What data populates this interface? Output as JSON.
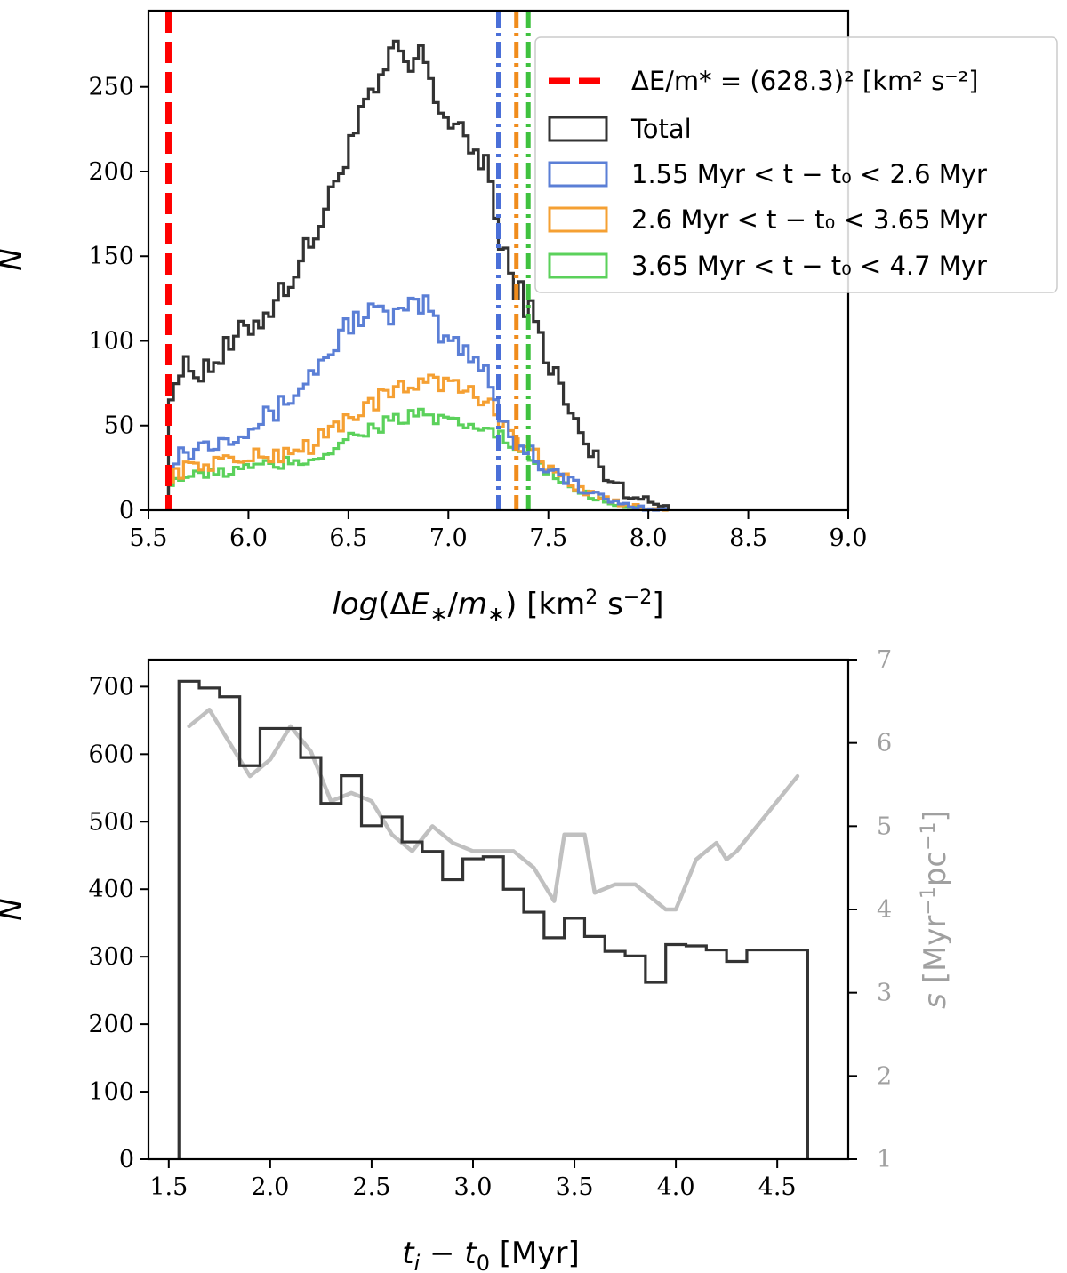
{
  "chart_data": [
    {
      "type": "histogram",
      "panel": "top",
      "xlabel": "log(ΔE*/m*) [km² s⁻²]",
      "ylabel": "N",
      "xlim": [
        5.5,
        9.0
      ],
      "ylim": [
        0,
        295
      ],
      "xticks": [
        "5.5",
        "6.0",
        "6.5",
        "7.0",
        "7.5",
        "8.0",
        "8.5",
        "9.0"
      ],
      "yticks": [
        "0",
        "50",
        "100",
        "150",
        "200",
        "250"
      ],
      "bins": {
        "start": 5.6,
        "end": 8.1,
        "count": 100
      },
      "threshold_line": {
        "x": 5.6,
        "label": "ΔE/m* = (628.3)² [km² s⁻²]",
        "color": "#ff0000"
      },
      "series": [
        {
          "name": "Total",
          "color": "#333333",
          "anchors": [
            [
              5.6,
              72
            ],
            [
              5.65,
              80
            ],
            [
              5.7,
              83
            ],
            [
              5.8,
              85
            ],
            [
              5.9,
              95
            ],
            [
              6.0,
              108
            ],
            [
              6.1,
              118
            ],
            [
              6.2,
              135
            ],
            [
              6.3,
              155
            ],
            [
              6.4,
              180
            ],
            [
              6.5,
              215
            ],
            [
              6.6,
              240
            ],
            [
              6.7,
              260
            ],
            [
              6.75,
              278
            ],
            [
              6.8,
              255
            ],
            [
              6.85,
              270
            ],
            [
              6.9,
              262
            ],
            [
              6.95,
              240
            ],
            [
              7.0,
              230
            ],
            [
              7.1,
              215
            ],
            [
              7.2,
              205
            ],
            [
              7.25,
              160
            ],
            [
              7.3,
              142
            ],
            [
              7.4,
              120
            ],
            [
              7.5,
              90
            ],
            [
              7.6,
              60
            ],
            [
              7.7,
              35
            ],
            [
              7.8,
              20
            ],
            [
              7.9,
              10
            ],
            [
              8.0,
              5
            ],
            [
              8.1,
              2
            ]
          ],
          "amp": 9
        },
        {
          "name": "1.55 Myr < t − t₀ < 2.6 Myr",
          "color": "#5b7fd6",
          "anchors": [
            [
              5.6,
              32
            ],
            [
              5.7,
              35
            ],
            [
              5.8,
              40
            ],
            [
              5.9,
              45
            ],
            [
              6.0,
              50
            ],
            [
              6.1,
              55
            ],
            [
              6.2,
              65
            ],
            [
              6.3,
              78
            ],
            [
              6.4,
              92
            ],
            [
              6.5,
              110
            ],
            [
              6.6,
              118
            ],
            [
              6.7,
              114
            ],
            [
              6.8,
              118
            ],
            [
              6.9,
              122
            ],
            [
              6.95,
              105
            ],
            [
              7.0,
              100
            ],
            [
              7.1,
              95
            ],
            [
              7.2,
              82
            ],
            [
              7.25,
              60
            ],
            [
              7.3,
              45
            ],
            [
              7.4,
              35
            ],
            [
              7.5,
              25
            ],
            [
              7.6,
              18
            ],
            [
              7.7,
              10
            ],
            [
              7.8,
              6
            ],
            [
              7.9,
              3
            ],
            [
              8.0,
              1
            ],
            [
              8.1,
              0
            ]
          ],
          "amp": 7
        },
        {
          "name": "2.6 Myr < t − t₀ < 3.65 Myr",
          "color": "#f5a033",
          "anchors": [
            [
              5.6,
              20
            ],
            [
              5.7,
              25
            ],
            [
              5.8,
              28
            ],
            [
              5.9,
              30
            ],
            [
              6.0,
              30
            ],
            [
              6.1,
              32
            ],
            [
              6.2,
              35
            ],
            [
              6.3,
              38
            ],
            [
              6.4,
              45
            ],
            [
              6.5,
              55
            ],
            [
              6.6,
              62
            ],
            [
              6.7,
              68
            ],
            [
              6.8,
              72
            ],
            [
              6.9,
              80
            ],
            [
              7.0,
              74
            ],
            [
              7.1,
              70
            ],
            [
              7.2,
              62
            ],
            [
              7.3,
              50
            ],
            [
              7.4,
              35
            ],
            [
              7.5,
              25
            ],
            [
              7.6,
              18
            ],
            [
              7.7,
              10
            ],
            [
              7.8,
              6
            ],
            [
              7.9,
              3
            ],
            [
              8.0,
              1
            ],
            [
              8.1,
              0
            ]
          ],
          "amp": 6
        },
        {
          "name": "3.65 Myr < t − t₀ < 4.7 Myr",
          "color": "#5bd15b",
          "anchors": [
            [
              5.6,
              17
            ],
            [
              5.7,
              20
            ],
            [
              5.8,
              21
            ],
            [
              5.9,
              23
            ],
            [
              6.0,
              25
            ],
            [
              6.1,
              26
            ],
            [
              6.2,
              28
            ],
            [
              6.3,
              30
            ],
            [
              6.4,
              35
            ],
            [
              6.5,
              42
            ],
            [
              6.6,
              48
            ],
            [
              6.7,
              52
            ],
            [
              6.8,
              55
            ],
            [
              6.9,
              56
            ],
            [
              7.0,
              50
            ],
            [
              7.1,
              50
            ],
            [
              7.2,
              48
            ],
            [
              7.3,
              40
            ],
            [
              7.4,
              30
            ],
            [
              7.5,
              22
            ],
            [
              7.6,
              15
            ],
            [
              7.7,
              9
            ],
            [
              7.8,
              5
            ],
            [
              7.9,
              2
            ],
            [
              8.0,
              1
            ],
            [
              8.1,
              0
            ]
          ],
          "amp": 5
        }
      ],
      "vlines": [
        {
          "x": 7.25,
          "color": "#4a6fd8"
        },
        {
          "x": 7.34,
          "color": "#f08c1c"
        },
        {
          "x": 7.4,
          "color": "#3fc23f"
        }
      ],
      "legend": {
        "position": "upper right",
        "entries": [
          {
            "label": "ΔE/m* = (628.3)² [km² s⁻²]",
            "kind": "dashed",
            "color": "#ff0000"
          },
          {
            "label": "Total",
            "kind": "box",
            "color": "#333333"
          },
          {
            "label": "1.55 Myr < t − t₀ < 2.6 Myr",
            "kind": "box",
            "color": "#5b7fd6"
          },
          {
            "label": "2.6 Myr < t − t₀ < 3.65 Myr",
            "kind": "box",
            "color": "#f5a033"
          },
          {
            "label": "3.65 Myr < t − t₀ < 4.7 Myr",
            "kind": "box",
            "color": "#5bd15b"
          }
        ]
      }
    },
    {
      "type": "histogram",
      "panel": "bottom",
      "xlabel": "tᵢ − t₀ [Myr]",
      "ylabel": "N",
      "ylabel_right": "s [Myr⁻¹pc⁻¹]",
      "xlim": [
        1.4,
        4.85
      ],
      "ylim": [
        0,
        740
      ],
      "y2lim": [
        1,
        7
      ],
      "xticks": [
        "1.5",
        "2.0",
        "2.5",
        "3.0",
        "3.5",
        "4.0",
        "4.5"
      ],
      "yticks": [
        "0",
        "100",
        "200",
        "300",
        "400",
        "500",
        "600",
        "700"
      ],
      "y2ticks": [
        "1",
        "2",
        "3",
        "4",
        "5",
        "6",
        "7"
      ],
      "edges": [
        1.55,
        1.65,
        1.75,
        1.85,
        1.95,
        2.05,
        2.15,
        2.25,
        2.35,
        2.45,
        2.55,
        2.65,
        2.75,
        2.85,
        2.95,
        3.05,
        3.15,
        3.25,
        3.35,
        3.45,
        3.55,
        3.65,
        3.75,
        3.85,
        3.95,
        4.05,
        4.15,
        4.25,
        4.35,
        4.45,
        4.55,
        4.65
      ],
      "counts": [
        708,
        698,
        685,
        583,
        638,
        638,
        595,
        527,
        568,
        494,
        507,
        470,
        456,
        414,
        445,
        448,
        400,
        366,
        328,
        357,
        330,
        308,
        301,
        262,
        318,
        316,
        310,
        293,
        310,
        310,
        310
      ],
      "hist_color": "#333333",
      "rate_series": {
        "name": "s",
        "color": "#c0c0c0",
        "x": [
          1.6,
          1.7,
          1.8,
          1.9,
          2.0,
          2.1,
          2.2,
          2.3,
          2.4,
          2.5,
          2.6,
          2.7,
          2.8,
          2.9,
          3.0,
          3.1,
          3.2,
          3.3,
          3.4,
          3.45,
          3.55,
          3.6,
          3.7,
          3.8,
          3.9,
          3.95,
          4.0,
          4.1,
          4.2,
          4.25,
          4.3,
          4.4,
          4.5,
          4.6
        ],
        "y": [
          6.2,
          6.4,
          6.0,
          5.6,
          5.8,
          6.2,
          5.9,
          5.3,
          5.4,
          5.3,
          4.9,
          4.7,
          5.0,
          4.8,
          4.7,
          4.7,
          4.7,
          4.5,
          4.1,
          4.9,
          4.9,
          4.2,
          4.3,
          4.3,
          4.1,
          4.0,
          4.0,
          4.6,
          4.8,
          4.6,
          4.7,
          5.0,
          5.3,
          5.6
        ]
      }
    }
  ]
}
